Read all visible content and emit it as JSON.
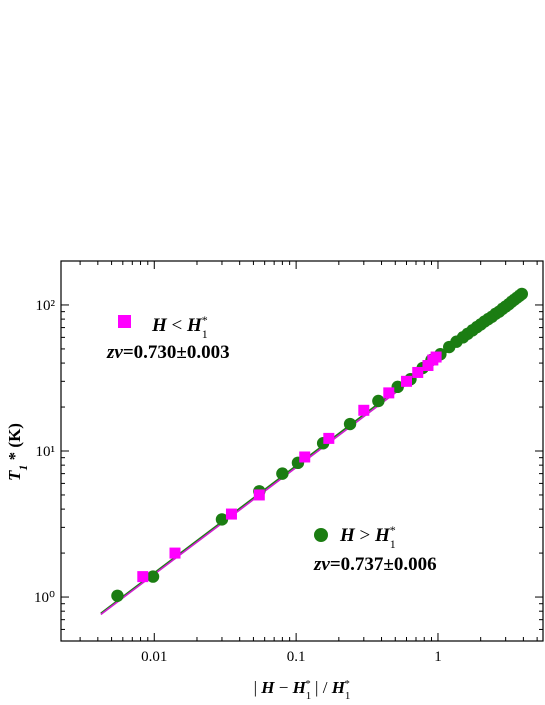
{
  "chart_data": {
    "type": "scatter",
    "xscale": "log",
    "yscale": "log",
    "xlim": [
      0.0022,
      5.5
    ],
    "ylim": [
      0.5,
      200
    ],
    "xlabel": "| H − H₁* | / H₁*",
    "ylabel": "T₁* (K)",
    "x_ticks": [
      {
        "value": 0.01,
        "label": "0.01"
      },
      {
        "value": 0.1,
        "label": "0.1"
      },
      {
        "value": 1,
        "label": "1"
      }
    ],
    "y_ticks": [
      {
        "value": 1,
        "label": "10⁰"
      },
      {
        "value": 10,
        "label": "10¹"
      },
      {
        "value": 100,
        "label": "10²"
      }
    ],
    "grid": false,
    "series": [
      {
        "name": "H < H₁*",
        "fit_label": "zv=0.730±0.003",
        "marker": "square",
        "color": "#ff00ff",
        "x": [
          0.0083,
          0.014,
          0.035,
          0.055,
          0.115,
          0.17,
          0.3,
          0.45,
          0.6,
          0.72,
          0.85,
          0.92,
          0.97
        ],
        "y": [
          1.38,
          2.0,
          3.7,
          5.0,
          9.1,
          12.2,
          19.0,
          25.0,
          30.0,
          34.5,
          38.5,
          42.0,
          44.0
        ]
      },
      {
        "name": "H > H₁*",
        "fit_label": "zv=0.737±0.006",
        "marker": "circle",
        "color": "#1b7d12",
        "x": [
          0.0055,
          0.0098,
          0.03,
          0.055,
          0.08,
          0.103,
          0.155,
          0.24,
          0.38,
          0.52,
          0.64,
          0.78,
          0.9,
          1.04,
          1.2,
          1.35,
          1.5,
          1.62,
          1.75,
          1.88,
          2.0,
          2.13,
          2.26,
          2.4,
          2.55,
          2.7,
          2.85,
          3.0,
          3.15,
          3.3,
          3.45,
          3.6,
          3.75,
          3.9
        ],
        "y": [
          1.02,
          1.38,
          3.4,
          5.3,
          7.0,
          8.3,
          11.3,
          15.3,
          22.0,
          27.5,
          31.0,
          37.0,
          42.0,
          46.0,
          51.5,
          56.0,
          60.0,
          63.5,
          67.0,
          70.5,
          73.5,
          77.0,
          80.0,
          83.0,
          87.0,
          90.0,
          94.0,
          97.5,
          101.0,
          105.0,
          108.5,
          112.0,
          115.5,
          119.0
        ]
      }
    ],
    "fit_lines": [
      {
        "name": "fit-green",
        "color": "#1b7d12",
        "x": [
          0.0042,
          4.1
        ],
        "y": [
          0.775,
          121
        ]
      },
      {
        "name": "fit-magenta",
        "color": "#d020d0",
        "x": [
          0.0042,
          1.0
        ],
        "y": [
          0.76,
          41.5
        ]
      }
    ]
  }
}
